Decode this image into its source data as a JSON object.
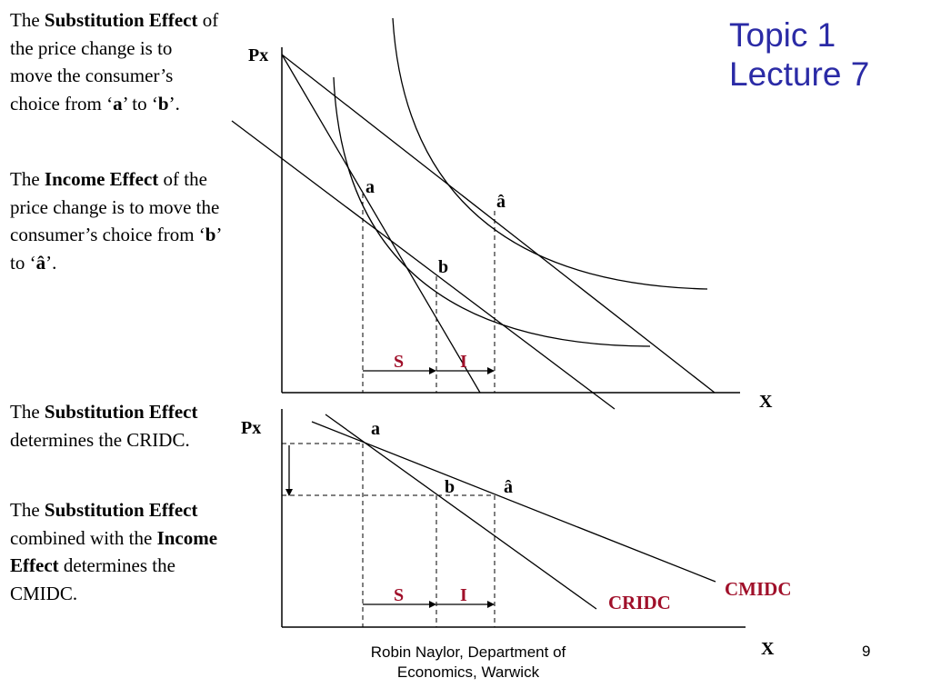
{
  "title": {
    "line1": "Topic 1",
    "line2": "Lecture 7"
  },
  "footer": {
    "line1": "Robin Naylor, Department of",
    "line2": "Economics, Warwick",
    "page": "9"
  },
  "text_blocks": {
    "p1": {
      "pre": "The ",
      "bold": "Substitution Effect",
      "post": " of the price change is to move the consumer’s choice from ‘",
      "a": "a",
      "mid": "’ to ‘",
      "b": "b",
      "end": "’."
    },
    "p2": {
      "pre": "The ",
      "bold": "Income Effect",
      "post": " of the price change is to move the consumer’s choice from ‘",
      "b": "b",
      "mid": "’ to ‘",
      "ahat": "â",
      "end": "’."
    },
    "p3": {
      "pre": "The ",
      "bold": "Substitution Effect",
      "post": " determines the CRIDC."
    },
    "p4": {
      "pre": "The ",
      "bold1": "Substitution Effect",
      "mid": " combined with the ",
      "bold2": "Income Effect",
      "post": " determines the CMIDC."
    }
  },
  "top_diagram": {
    "y_label": "Px",
    "x_label": "X",
    "point_a": "a",
    "point_b": "b",
    "point_ahat": "â",
    "label_s": "S",
    "label_i": "I"
  },
  "bottom_diagram": {
    "y_label": "Px",
    "x_label": "X",
    "point_a": "a",
    "point_b": "b",
    "point_ahat": "â",
    "label_s": "S",
    "label_i": "I",
    "curve_cmidc": "CMIDC",
    "curve_cridc": "CRIDC"
  },
  "colors": {
    "title": "#2b2ba6",
    "effect_labels": "#a0102a",
    "lines": "#000000"
  }
}
